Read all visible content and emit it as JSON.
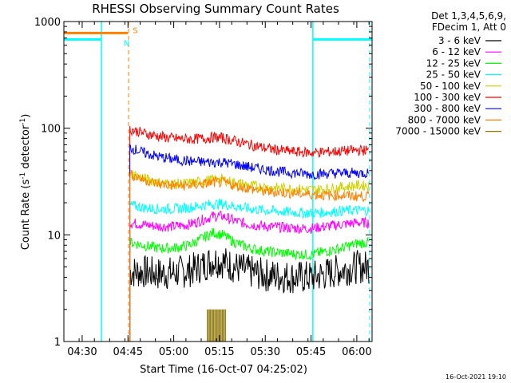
{
  "chart_data": {
    "type": "line",
    "title": "RHESSI Observing Summary Count Rates",
    "xlabel": "Start Time (16-Oct-07 04:25:02)",
    "ylabel_main": "Count Rate (s",
    "ylabel_sup1": "-1",
    "ylabel_mid": " detector",
    "ylabel_sup2": "-1",
    "ylabel_end": ")",
    "yscale": "log",
    "ylim": [
      1,
      1000
    ],
    "xlim_minutes": [
      264,
      365
    ],
    "x_ticks": [
      {
        "label": "04:30",
        "minute": 270
      },
      {
        "label": "04:45",
        "minute": 285
      },
      {
        "label": "05:00",
        "minute": 300
      },
      {
        "label": "05:15",
        "minute": 315
      },
      {
        "label": "05:30",
        "minute": 330
      },
      {
        "label": "05:45",
        "minute": 345
      },
      {
        "label": "06:00",
        "minute": 360
      }
    ],
    "y_ticks": [
      {
        "label": "1",
        "value": 1
      },
      {
        "label": "10",
        "value": 10
      },
      {
        "label": "100",
        "value": 100
      },
      {
        "label": "1000",
        "value": 1000
      }
    ],
    "legend_header": [
      "Det 1,3,4,5,6,9,",
      "FDecim 1, Att 0"
    ],
    "legend_position": "right",
    "series": [
      {
        "name": "3 - 6 keV",
        "color": "#000000",
        "x": [
          285.6,
          290,
          295,
          300,
          305,
          310,
          313,
          316,
          320,
          325,
          330,
          335,
          340,
          345,
          350,
          355,
          360,
          364
        ],
        "values": [
          4.5,
          4.5,
          4.3,
          4.4,
          4.6,
          5.2,
          5.8,
          5.6,
          5.0,
          4.5,
          4.2,
          4.1,
          4.0,
          4.0,
          4.3,
          4.7,
          5.0,
          5.0
        ]
      },
      {
        "name": "6 - 12 keV",
        "color": "#ff00ff",
        "x": [
          285.6,
          290,
          295,
          300,
          305,
          310,
          313,
          316,
          320,
          325,
          330,
          335,
          340,
          345,
          350,
          355,
          360,
          364
        ],
        "values": [
          13,
          12.5,
          12,
          12,
          12.5,
          14,
          15,
          15,
          13.5,
          12.5,
          12,
          11.8,
          11.5,
          11.5,
          12,
          12.5,
          13,
          13
        ]
      },
      {
        "name": "12 - 25 keV",
        "color": "#00ff00",
        "x": [
          285.6,
          290,
          295,
          300,
          305,
          310,
          313,
          316,
          320,
          325,
          330,
          335,
          340,
          345,
          350,
          355,
          360,
          364
        ],
        "values": [
          8.5,
          8,
          7.5,
          7.5,
          8,
          9.5,
          10.5,
          10,
          8.5,
          7.5,
          7,
          6.8,
          6.6,
          6.5,
          7,
          7.5,
          8.3,
          8.5
        ]
      },
      {
        "name": "25 - 50 keV",
        "color": "#00ffff",
        "x": [
          285.6,
          290,
          295,
          300,
          305,
          310,
          313,
          316,
          320,
          325,
          330,
          335,
          340,
          345,
          350,
          355,
          360,
          364
        ],
        "values": [
          19,
          18,
          17.5,
          17.5,
          18,
          19,
          19.5,
          19.5,
          18.5,
          17.5,
          17,
          16.5,
          16.2,
          16,
          16.3,
          16.8,
          17,
          17
        ]
      },
      {
        "name": "50 - 100 keV",
        "color": "#d0d000",
        "x": [
          285.6,
          290,
          295,
          300,
          305,
          310,
          313,
          316,
          320,
          325,
          330,
          335,
          340,
          345,
          350,
          355,
          360,
          364
        ],
        "values": [
          38,
          34,
          31,
          30,
          30.5,
          32,
          33,
          33,
          31,
          29,
          28,
          27.5,
          27,
          26.5,
          27,
          28,
          29,
          29
        ]
      },
      {
        "name": "100 - 300 keV",
        "color": "#ff0000",
        "x": [
          285.6,
          290,
          295,
          300,
          305,
          310,
          313,
          316,
          320,
          325,
          330,
          335,
          340,
          345,
          350,
          355,
          360,
          364
        ],
        "values": [
          98,
          90,
          84,
          80,
          79,
          80,
          82,
          81,
          76,
          70,
          65,
          62,
          60,
          59,
          60,
          61,
          62,
          62
        ]
      },
      {
        "name": "300 - 800 keV",
        "color": "#0000ff",
        "x": [
          285.6,
          290,
          295,
          300,
          305,
          310,
          313,
          316,
          320,
          325,
          330,
          335,
          340,
          345,
          350,
          355,
          360,
          364
        ],
        "values": [
          66,
          59,
          54,
          51,
          49,
          48,
          48,
          48,
          46,
          43,
          41,
          39,
          38,
          37,
          37.5,
          38,
          38,
          38
        ]
      },
      {
        "name": "800 - 7000 keV",
        "color": "#ff8000",
        "x": [
          285.6,
          290,
          295,
          300,
          305,
          310,
          313,
          316,
          320,
          325,
          330,
          335,
          340,
          345,
          350,
          355,
          360,
          364
        ],
        "values": [
          37,
          33,
          30,
          29,
          29,
          30,
          31,
          31,
          29,
          27,
          25.5,
          25,
          24.5,
          24,
          23.5,
          23.5,
          23,
          23
        ]
      },
      {
        "name": "7000 - 15000 keV",
        "color": "#8b7500",
        "x": [
          311,
          312,
          313,
          314,
          315,
          316,
          317
        ],
        "values": [
          2,
          2,
          2,
          2,
          2,
          2,
          2
        ]
      }
    ],
    "annotations": [
      {
        "label": "S",
        "color": "#ff8000",
        "kind": "saa",
        "x_minute": 285,
        "y_value": 780,
        "extends_from": 264
      },
      {
        "label": "N",
        "color": "#00ffff",
        "kind": "night",
        "x_minute": 282,
        "y_value": 680,
        "extends_from": 264
      }
    ],
    "night_bands": [
      {
        "start_minute": 264,
        "end_minute": 276.3,
        "color": "#00ffff"
      },
      {
        "start_minute": 345.6,
        "end_minute": 365,
        "color": "#00ffff"
      }
    ],
    "dashed_lines": [
      {
        "minute": 276.3,
        "color": "#00ffff"
      },
      {
        "minute": 285.2,
        "color": "#ff8000"
      },
      {
        "minute": 364.2,
        "color": "#00ffff"
      }
    ],
    "footer_date": "16-Oct-2021 19:10"
  }
}
